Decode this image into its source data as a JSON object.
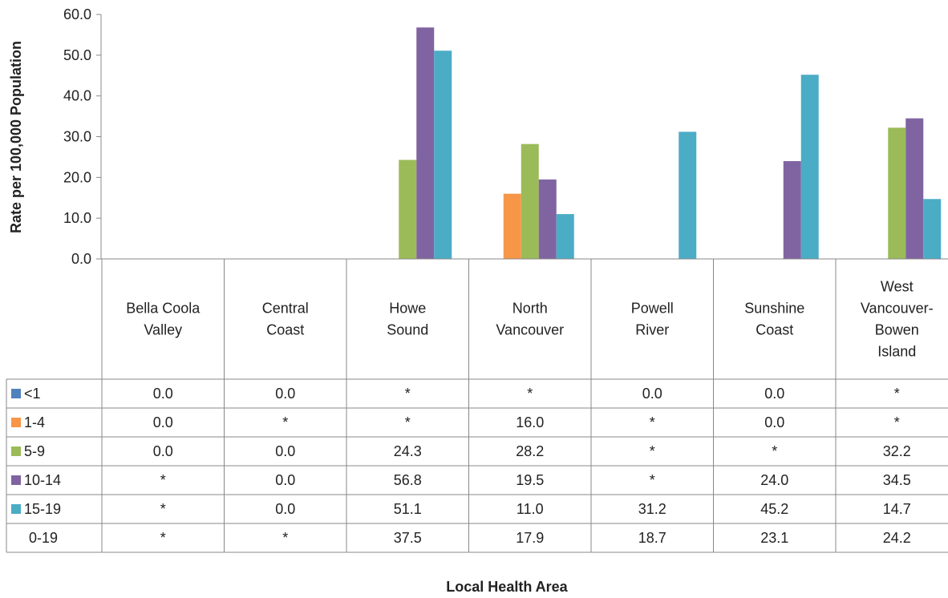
{
  "chart_data": {
    "type": "bar",
    "ylabel": "Rate per 100,000 Population",
    "xlabel": "Local Health Area",
    "ylim": [
      0,
      60
    ],
    "yticks": [
      "0.0",
      "10.0",
      "20.0",
      "30.0",
      "40.0",
      "50.0",
      "60.0"
    ],
    "grid": false,
    "categories": [
      [
        "Bella Coola",
        "Valley"
      ],
      [
        "Central",
        "Coast"
      ],
      [
        "Howe",
        "Sound"
      ],
      [
        "North",
        "Vancouver"
      ],
      [
        "Powell",
        "River"
      ],
      [
        "Sunshine",
        "Coast"
      ],
      [
        "West",
        "Vancouver-",
        "Bowen",
        "Island"
      ]
    ],
    "series": [
      {
        "name": "<1",
        "color": "#4F81BD",
        "values": [
          0,
          0,
          null,
          null,
          0,
          0,
          null
        ],
        "labels": [
          "0.0",
          "0.0",
          "*",
          "*",
          "0.0",
          "0.0",
          "*"
        ]
      },
      {
        "name": "1-4",
        "color": "#F79646",
        "values": [
          0,
          null,
          null,
          16.0,
          null,
          0,
          null
        ],
        "labels": [
          "0.0",
          "*",
          "*",
          "16.0",
          "*",
          "0.0",
          "*"
        ]
      },
      {
        "name": "5-9",
        "color": "#9BBB59",
        "values": [
          0,
          0,
          24.3,
          28.2,
          null,
          null,
          32.2
        ],
        "labels": [
          "0.0",
          "0.0",
          "24.3",
          "28.2",
          "*",
          "*",
          "32.2"
        ]
      },
      {
        "name": "10-14",
        "color": "#8064A2",
        "values": [
          null,
          0,
          56.8,
          19.5,
          null,
          24.0,
          34.5
        ],
        "labels": [
          "*",
          "0.0",
          "56.8",
          "19.5",
          "*",
          "24.0",
          "34.5"
        ]
      },
      {
        "name": "15-19",
        "color": "#4BACC6",
        "values": [
          null,
          0,
          51.1,
          11.0,
          31.2,
          45.2,
          14.7
        ],
        "labels": [
          "*",
          "0.0",
          "51.1",
          "11.0",
          "31.2",
          "45.2",
          "14.7"
        ]
      }
    ],
    "table_only_rows": [
      {
        "name": "0-19",
        "labels": [
          "*",
          "*",
          "37.5",
          "17.9",
          "18.7",
          "23.1",
          "24.2"
        ]
      }
    ]
  }
}
